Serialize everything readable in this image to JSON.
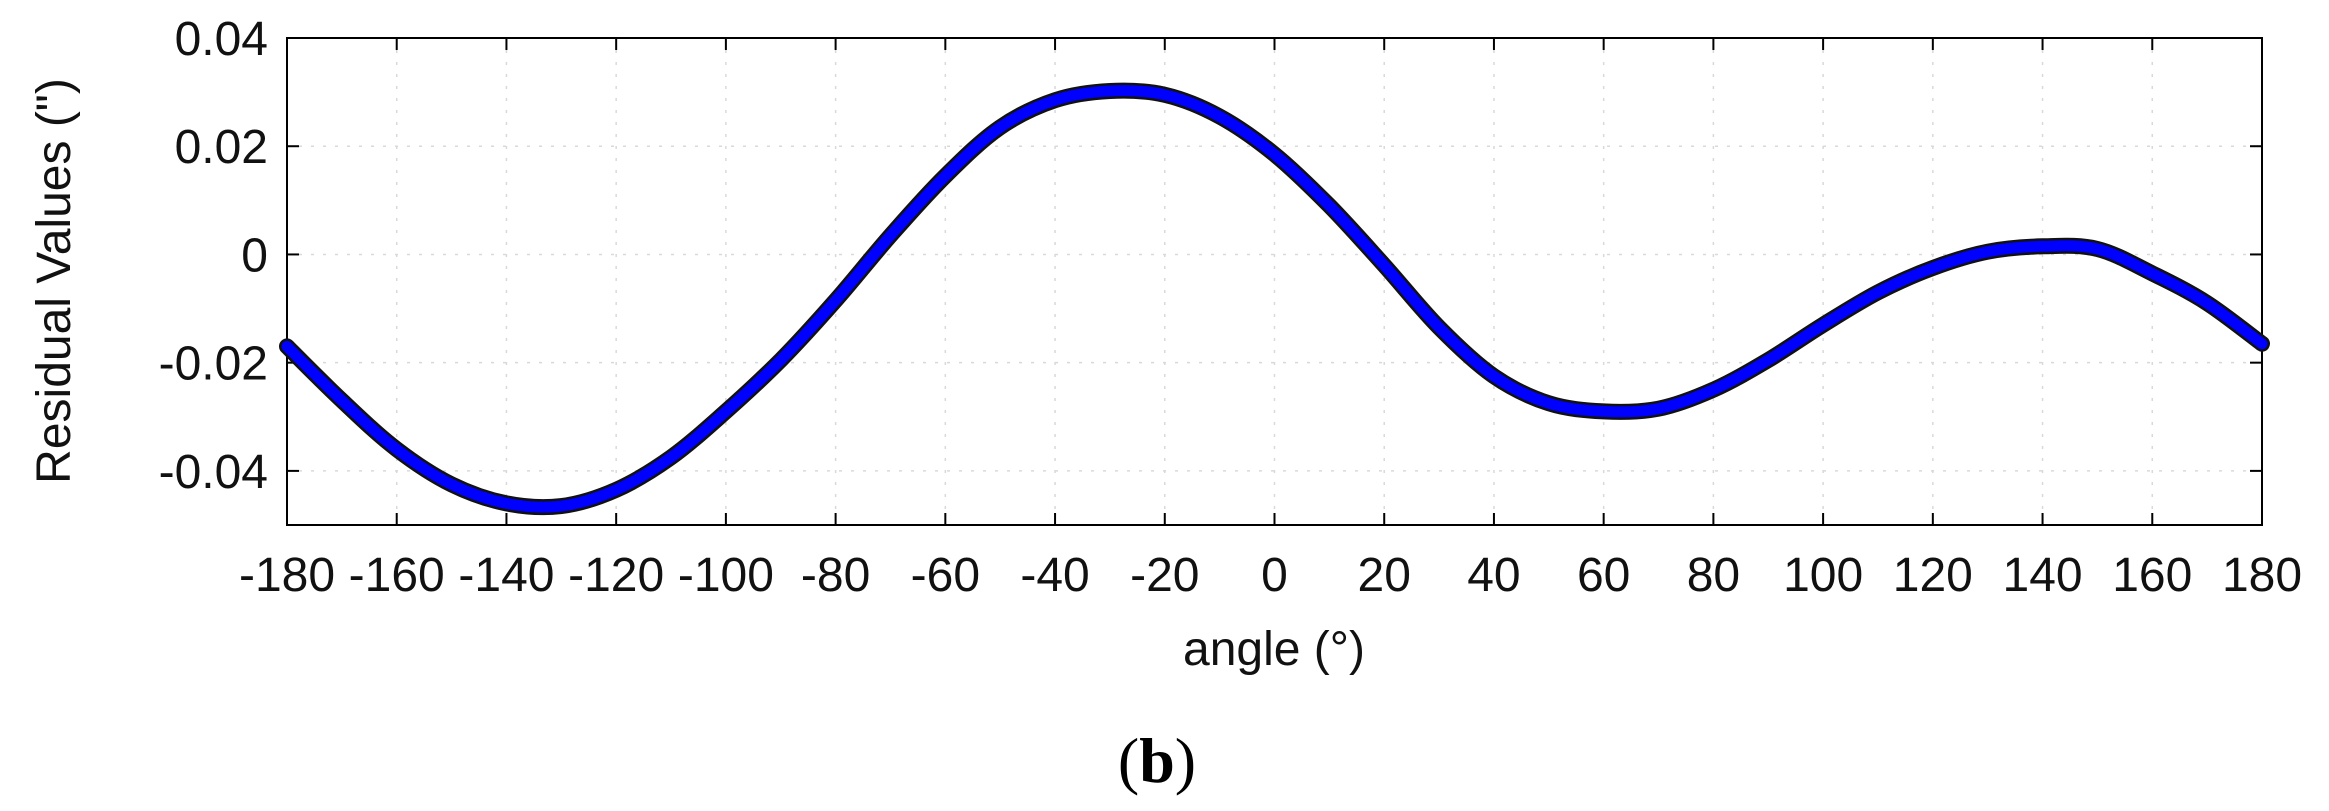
{
  "chart_data": {
    "type": "line",
    "title": "",
    "xlabel": "angle (°)",
    "ylabel": "Residual Values (\")",
    "xlim": [
      -180,
      180
    ],
    "ylim": [
      -0.05,
      0.04
    ],
    "xticks": [
      -180,
      -160,
      -140,
      -120,
      -100,
      -80,
      -60,
      -40,
      -20,
      0,
      20,
      40,
      60,
      80,
      100,
      120,
      140,
      160,
      180
    ],
    "xtick_labels": [
      "-180",
      "-160",
      "-140",
      "-120",
      "-100",
      "-80",
      "-60",
      "-40",
      "-20",
      "0",
      "20",
      "40",
      "60",
      "80",
      "100",
      "120",
      "140",
      "160",
      "180"
    ],
    "yticks": [
      -0.04,
      -0.02,
      0,
      0.02,
      0.04
    ],
    "ytick_labels": [
      "-0.04",
      "-0.02",
      "0",
      "0.02",
      "0.04"
    ],
    "grid": true,
    "series": [
      {
        "color": "#0000ff",
        "x": [
          -180,
          -170,
          -160,
          -150,
          -140,
          -130,
          -120,
          -110,
          -100,
          -90,
          -80,
          -70,
          -60,
          -50,
          -40,
          -30,
          -20,
          -10,
          0,
          10,
          20,
          30,
          40,
          50,
          60,
          70,
          80,
          90,
          100,
          110,
          120,
          130,
          140,
          150,
          160,
          170,
          180
        ],
        "y": [
          -0.017,
          -0.027,
          -0.036,
          -0.0425,
          -0.046,
          -0.0465,
          -0.0435,
          -0.0375,
          -0.029,
          -0.0195,
          -0.0085,
          0.0035,
          0.0145,
          0.0235,
          0.0285,
          0.0302,
          0.0295,
          0.0255,
          0.0185,
          0.009,
          -0.002,
          -0.0135,
          -0.0225,
          -0.0275,
          -0.029,
          -0.0285,
          -0.025,
          -0.0195,
          -0.013,
          -0.007,
          -0.0025,
          0.0005,
          0.0015,
          0.001,
          -0.0035,
          -0.009,
          -0.0165
        ]
      }
    ]
  },
  "caption": {
    "open": "(",
    "letter": "b",
    "close": ")"
  }
}
